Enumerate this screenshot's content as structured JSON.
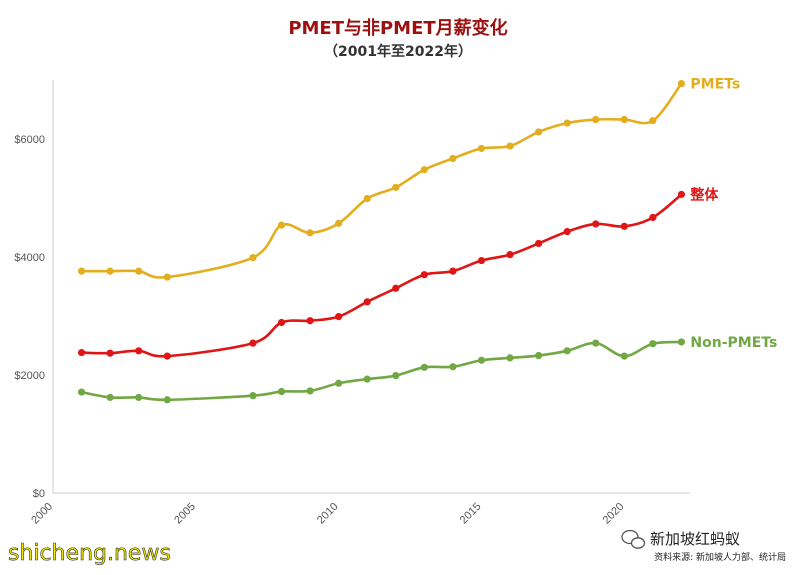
{
  "chart_data": {
    "type": "line",
    "title": "PMET与非PMET月薪变化",
    "subtitle": "（2001年至2022年）",
    "xlim": [
      2000,
      2022.3
    ],
    "ylim": [
      0,
      7000
    ],
    "x_ticks": [
      2000,
      2005,
      2010,
      2015,
      2020
    ],
    "y_ticks": [
      {
        "value": 0,
        "label": "$0"
      },
      {
        "value": 2000,
        "label": "$2000"
      },
      {
        "value": 4000,
        "label": "$4000"
      },
      {
        "value": 6000,
        "label": "$6000"
      }
    ],
    "grid": false,
    "series": [
      {
        "name": "PMETs",
        "color": "#e3ae1e",
        "points": [
          [
            2001,
            3760
          ],
          [
            2002,
            3760
          ],
          [
            2003,
            3760
          ],
          [
            2004,
            3660
          ],
          [
            2007,
            3990
          ],
          [
            2008,
            4540
          ],
          [
            2009,
            4410
          ],
          [
            2010,
            4570
          ],
          [
            2011,
            4990
          ],
          [
            2012,
            5180
          ],
          [
            2013,
            5480
          ],
          [
            2014,
            5670
          ],
          [
            2015,
            5840
          ],
          [
            2016,
            5880
          ],
          [
            2017,
            6120
          ],
          [
            2018,
            6270
          ],
          [
            2019,
            6330
          ],
          [
            2020,
            6330
          ],
          [
            2021,
            6310
          ],
          [
            2022,
            6940
          ]
        ]
      },
      {
        "name": "整体",
        "color": "#e01616",
        "points": [
          [
            2001,
            2380
          ],
          [
            2002,
            2370
          ],
          [
            2003,
            2410
          ],
          [
            2004,
            2320
          ],
          [
            2007,
            2540
          ],
          [
            2008,
            2890
          ],
          [
            2009,
            2920
          ],
          [
            2010,
            2990
          ],
          [
            2011,
            3240
          ],
          [
            2012,
            3470
          ],
          [
            2013,
            3700
          ],
          [
            2014,
            3760
          ],
          [
            2015,
            3940
          ],
          [
            2016,
            4040
          ],
          [
            2017,
            4230
          ],
          [
            2018,
            4430
          ],
          [
            2019,
            4560
          ],
          [
            2020,
            4520
          ],
          [
            2021,
            4670
          ],
          [
            2022,
            5060
          ]
        ]
      },
      {
        "name": "Non-PMETs",
        "color": "#72a843",
        "points": [
          [
            2001,
            1710
          ],
          [
            2002,
            1620
          ],
          [
            2003,
            1620
          ],
          [
            2004,
            1580
          ],
          [
            2007,
            1650
          ],
          [
            2008,
            1720
          ],
          [
            2009,
            1730
          ],
          [
            2010,
            1860
          ],
          [
            2011,
            1930
          ],
          [
            2012,
            1990
          ],
          [
            2013,
            2130
          ],
          [
            2014,
            2140
          ],
          [
            2015,
            2250
          ],
          [
            2016,
            2290
          ],
          [
            2017,
            2330
          ],
          [
            2018,
            2410
          ],
          [
            2019,
            2540
          ],
          [
            2020,
            2320
          ],
          [
            2021,
            2530
          ],
          [
            2022,
            2560
          ]
        ]
      }
    ]
  },
  "watermark": "shicheng.news",
  "brand": "新加坡红蚂蚁",
  "source": "资料来源: 新加坡人力部、统计局"
}
